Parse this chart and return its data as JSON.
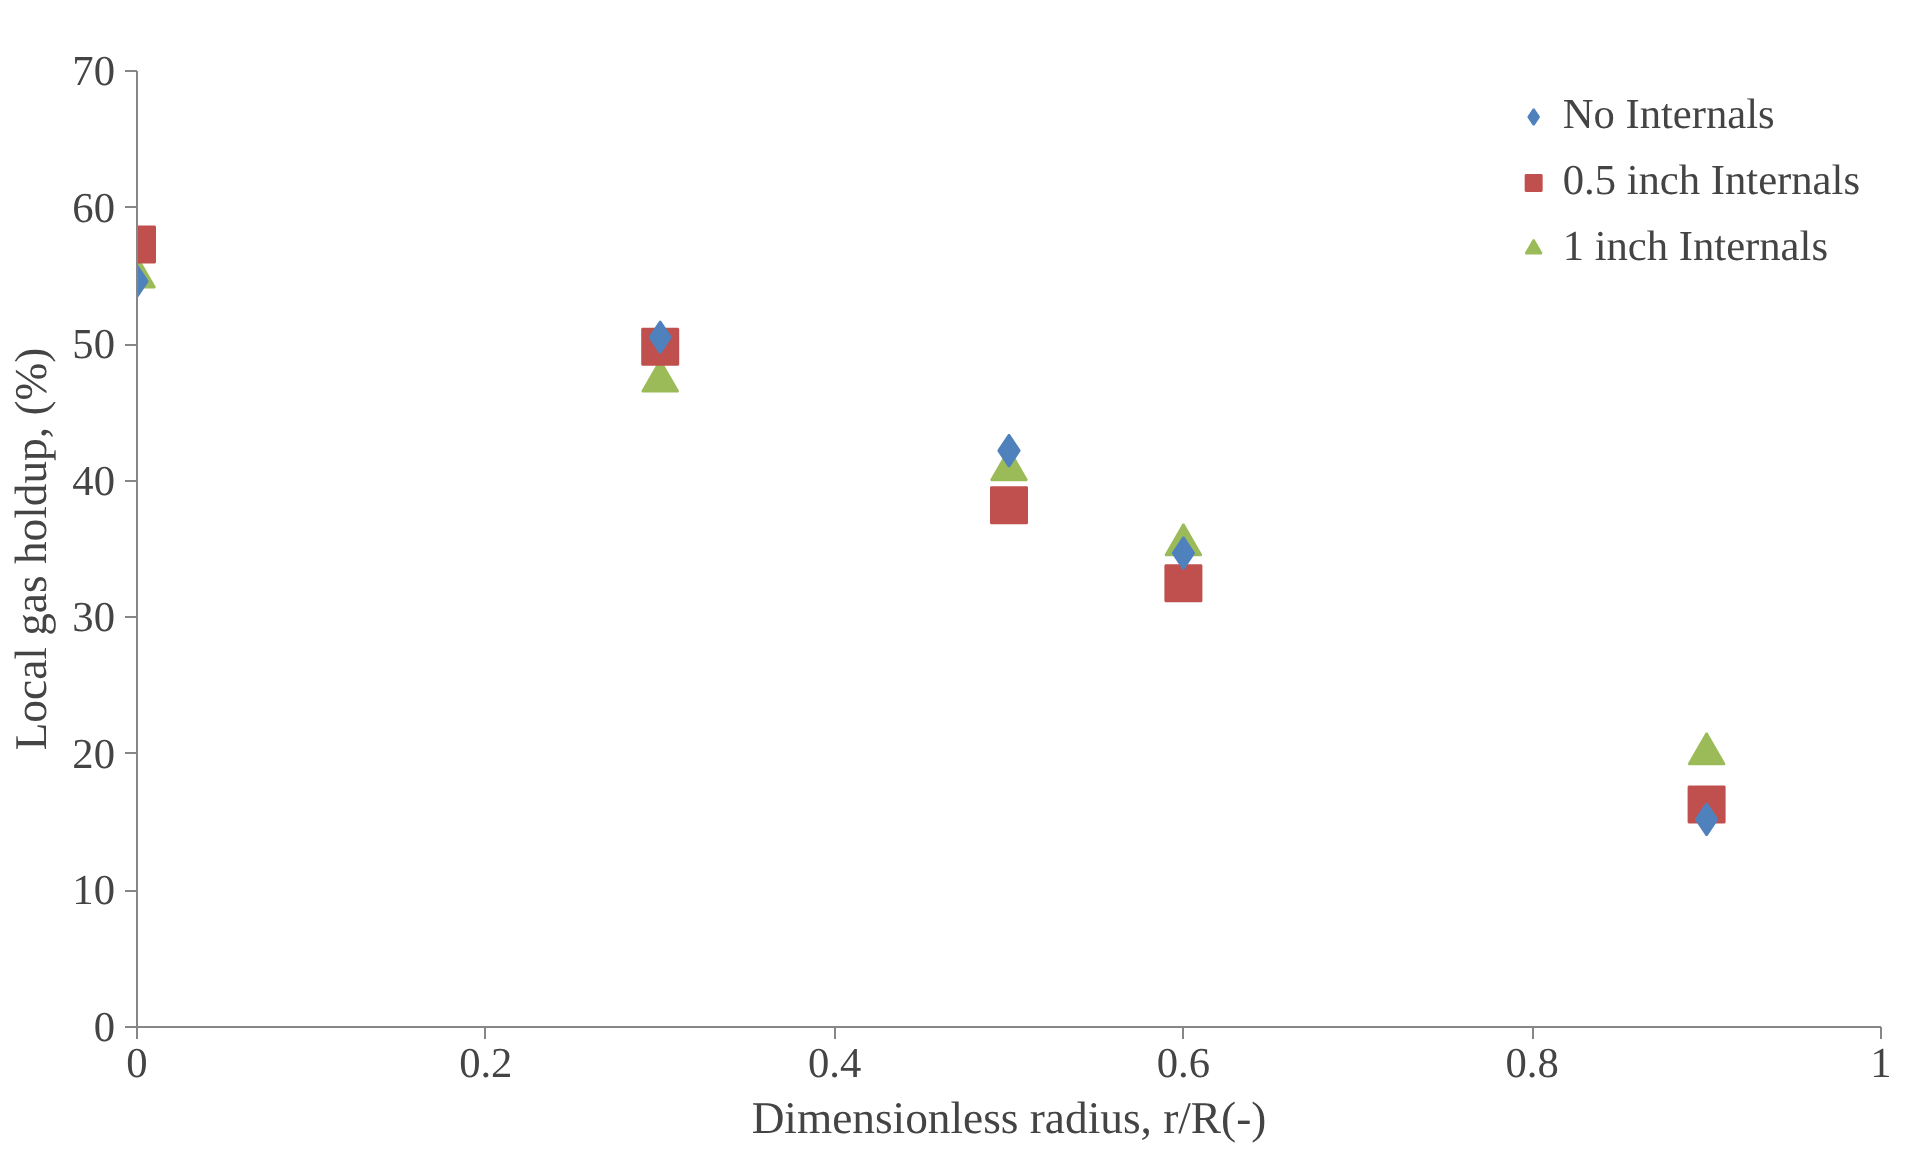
{
  "chart_data": {
    "type": "scatter",
    "xlabel": "Dimensionless radius, r/R(-)",
    "ylabel": "Local gas holdup, (%)",
    "x": [
      0,
      0.3,
      0.5,
      0.6,
      0.9
    ],
    "series": [
      {
        "name": "No Internals",
        "color": "#4f81bd",
        "marker": "diamond",
        "values": [
          54.6,
          50.5,
          42.2,
          34.7,
          15.2
        ]
      },
      {
        "name": "0.5 inch Internals",
        "color": "#c0504d",
        "marker": "square",
        "values": [
          57.3,
          49.8,
          38.2,
          32.5,
          16.3
        ]
      },
      {
        "name": "1 inch Internals",
        "color": "#9bbb59",
        "marker": "triangle",
        "values": [
          54.9,
          47.3,
          40.8,
          35.3,
          20.0
        ]
      }
    ],
    "xlim": [
      0,
      1
    ],
    "xticks": [
      0,
      0.2,
      0.4,
      0.6,
      0.8,
      1
    ],
    "ylim": [
      0,
      70
    ],
    "yticks": [
      0,
      10,
      20,
      30,
      40,
      50,
      60,
      70
    ],
    "grid": false,
    "legend": "top right"
  }
}
